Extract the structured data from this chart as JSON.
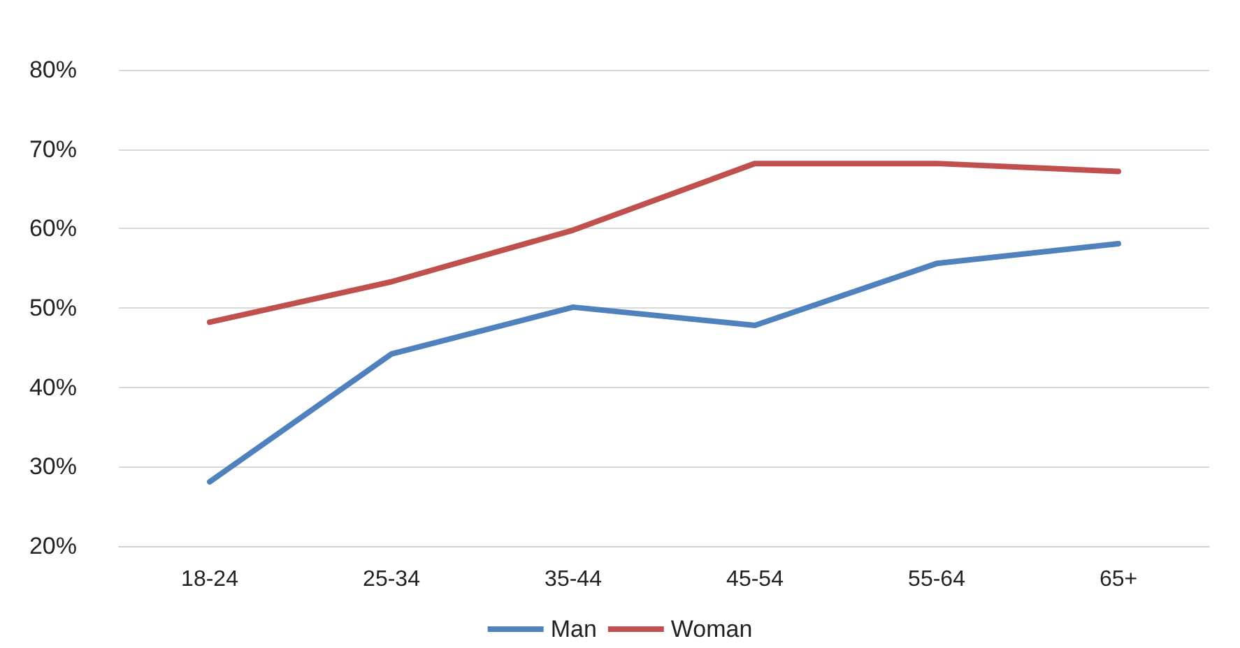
{
  "chart_data": {
    "type": "line",
    "categories": [
      "18-24",
      "25-34",
      "35-44",
      "45-54",
      "55-64",
      "65+"
    ],
    "series": [
      {
        "name": "Man",
        "color": "#4f81bd",
        "values": [
          28.1,
          44.2,
          50.1,
          47.8,
          55.6,
          58.1
        ]
      },
      {
        "name": "Woman",
        "color": "#c0504d",
        "values": [
          48.2,
          53.3,
          59.8,
          68.2,
          68.2,
          67.2
        ]
      }
    ],
    "ylim": [
      20,
      80
    ],
    "yticks": [
      {
        "value": 20,
        "label": "20%"
      },
      {
        "value": 30,
        "label": "30%"
      },
      {
        "value": 40,
        "label": "40%"
      },
      {
        "value": 50,
        "label": "50%"
      },
      {
        "value": 60,
        "label": "60%"
      },
      {
        "value": 70,
        "label": "70%"
      },
      {
        "value": 80,
        "label": "80%"
      }
    ],
    "grid": "y",
    "legend": "bottom",
    "marker": "none",
    "line_style": "solid"
  }
}
